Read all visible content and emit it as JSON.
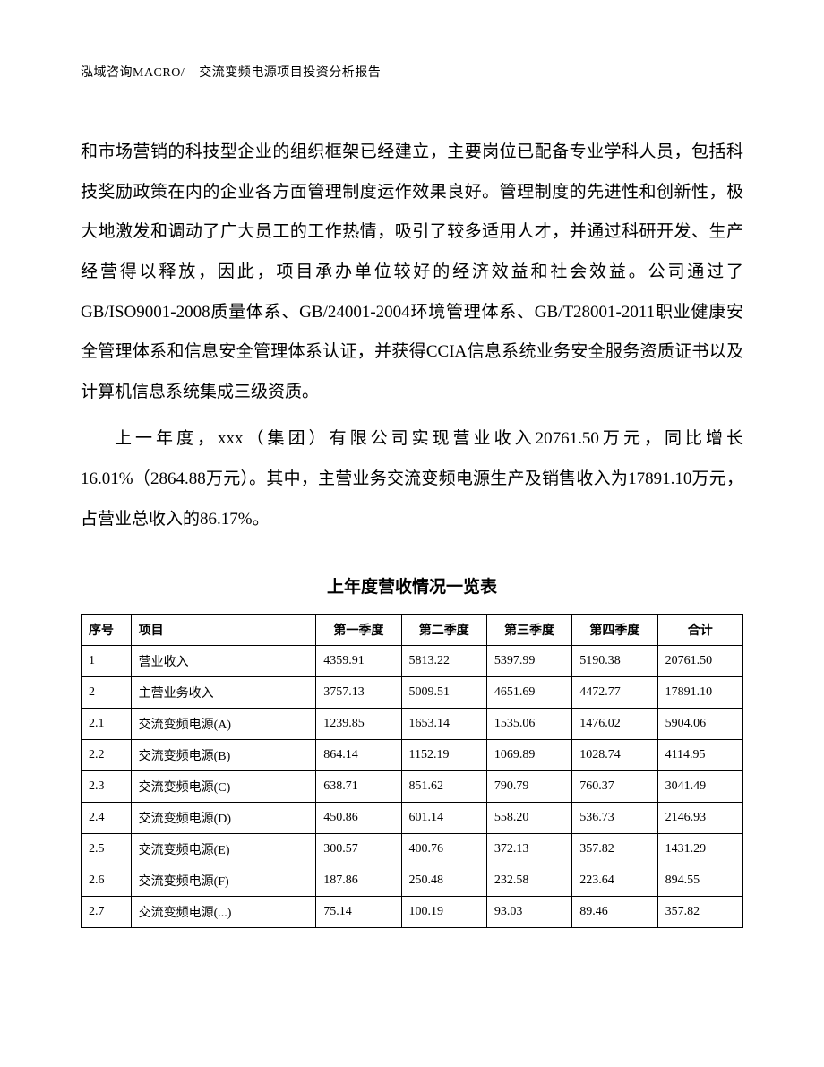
{
  "header": {
    "left": "泓域咨询MACRO/",
    "right": "交流变频电源项目投资分析报告"
  },
  "paragraphs": {
    "p1": "和市场营销的科技型企业的组织框架已经建立，主要岗位已配备专业学科人员，包括科技奖励政策在内的企业各方面管理制度运作效果良好。管理制度的先进性和创新性，极大地激发和调动了广大员工的工作热情，吸引了较多适用人才，并通过科研开发、生产经营得以释放，因此，项目承办单位较好的经济效益和社会效益。公司通过了GB/ISO9001-2008质量体系、GB/24001-2004环境管理体系、GB/T28001-2011职业健康安全管理体系和信息安全管理体系认证，并获得CCIA信息系统业务安全服务资质证书以及计算机信息系统集成三级资质。",
    "p2": "上一年度，xxx（集团）有限公司实现营业收入20761.50万元，同比增长16.01%（2864.88万元）。其中，主营业务交流变频电源生产及销售收入为17891.10万元，占营业总收入的86.17%。"
  },
  "table": {
    "title": "上年度营收情况一览表",
    "columns": {
      "seq": "序号",
      "item": "项目",
      "q1": "第一季度",
      "q2": "第二季度",
      "q3": "第三季度",
      "q4": "第四季度",
      "total": "合计"
    },
    "rows": [
      {
        "seq": "1",
        "item": "营业收入",
        "q1": "4359.91",
        "q2": "5813.22",
        "q3": "5397.99",
        "q4": "5190.38",
        "total": "20761.50"
      },
      {
        "seq": "2",
        "item": "主营业务收入",
        "q1": "3757.13",
        "q2": "5009.51",
        "q3": "4651.69",
        "q4": "4472.77",
        "total": "17891.10"
      },
      {
        "seq": "2.1",
        "item": "交流变频电源(A)",
        "q1": "1239.85",
        "q2": "1653.14",
        "q3": "1535.06",
        "q4": "1476.02",
        "total": "5904.06"
      },
      {
        "seq": "2.2",
        "item": "交流变频电源(B)",
        "q1": "864.14",
        "q2": "1152.19",
        "q3": "1069.89",
        "q4": "1028.74",
        "total": "4114.95"
      },
      {
        "seq": "2.3",
        "item": "交流变频电源(C)",
        "q1": "638.71",
        "q2": "851.62",
        "q3": "790.79",
        "q4": "760.37",
        "total": "3041.49"
      },
      {
        "seq": "2.4",
        "item": "交流变频电源(D)",
        "q1": "450.86",
        "q2": "601.14",
        "q3": "558.20",
        "q4": "536.73",
        "total": "2146.93"
      },
      {
        "seq": "2.5",
        "item": "交流变频电源(E)",
        "q1": "300.57",
        "q2": "400.76",
        "q3": "372.13",
        "q4": "357.82",
        "total": "1431.29"
      },
      {
        "seq": "2.6",
        "item": "交流变频电源(F)",
        "q1": "187.86",
        "q2": "250.48",
        "q3": "232.58",
        "q4": "223.64",
        "total": "894.55"
      },
      {
        "seq": "2.7",
        "item": "交流变频电源(...)",
        "q1": "75.14",
        "q2": "100.19",
        "q3": "93.03",
        "q4": "89.46",
        "total": "357.82"
      }
    ]
  },
  "style": {
    "background_color": "#ffffff",
    "text_color": "#000000",
    "border_color": "#000000",
    "header_fontsize": 14,
    "body_fontsize": 19,
    "table_fontsize": 14,
    "line_height": 2.35,
    "col_widths_pct": {
      "seq": 7,
      "item": 26,
      "q": 12,
      "total": 12
    }
  }
}
